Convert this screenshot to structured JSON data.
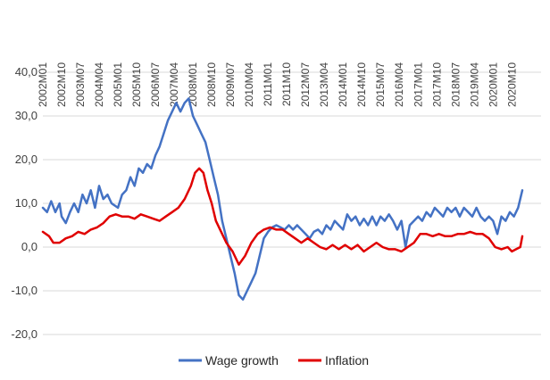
{
  "chart_data": {
    "type": "line",
    "title": "",
    "xlabel": "",
    "ylabel": "",
    "ylim": [
      -20,
      40
    ],
    "yticks": [
      -20,
      -10,
      0,
      10,
      20,
      30,
      40
    ],
    "ytick_labels": [
      "-20,0",
      "-10,0",
      "0,0",
      "10,0",
      "20,0",
      "30,0",
      "40,0"
    ],
    "x_start": "2002M01",
    "x_end": "2021M12",
    "xtick_labels": [
      "2002M01",
      "2002M10",
      "2003M07",
      "2004M04",
      "2005M01",
      "2005M10",
      "2006M07",
      "2007M04",
      "2008M01",
      "2008M10",
      "2009M07",
      "2010M04",
      "2011M01",
      "2011M10",
      "2012M07",
      "2013M04",
      "2014M01",
      "2014M10",
      "2015M07",
      "2016M04",
      "2017M01",
      "2017M10",
      "2018M07",
      "2019M04",
      "2020M01",
      "2020M10"
    ],
    "grid": true,
    "legend_position": "bottom",
    "series": [
      {
        "name": "Wage growth",
        "color": "#4472C4",
        "points": [
          [
            "2002M01",
            9
          ],
          [
            "2002M03",
            8
          ],
          [
            "2002M05",
            10.5
          ],
          [
            "2002M07",
            8
          ],
          [
            "2002M09",
            10
          ],
          [
            "2002M10",
            7
          ],
          [
            "2002M12",
            5.5
          ],
          [
            "2003M02",
            8
          ],
          [
            "2003M04",
            10
          ],
          [
            "2003M06",
            8
          ],
          [
            "2003M08",
            12
          ],
          [
            "2003M10",
            10
          ],
          [
            "2003M12",
            13
          ],
          [
            "2004M02",
            9
          ],
          [
            "2004M04",
            14
          ],
          [
            "2004M06",
            11
          ],
          [
            "2004M08",
            12
          ],
          [
            "2004M10",
            10
          ],
          [
            "2005M01",
            9
          ],
          [
            "2005M03",
            12
          ],
          [
            "2005M05",
            13
          ],
          [
            "2005M07",
            16
          ],
          [
            "2005M09",
            14
          ],
          [
            "2005M11",
            18
          ],
          [
            "2006M01",
            17
          ],
          [
            "2006M03",
            19
          ],
          [
            "2006M05",
            18
          ],
          [
            "2006M07",
            21
          ],
          [
            "2006M09",
            23
          ],
          [
            "2006M11",
            26
          ],
          [
            "2007M01",
            29
          ],
          [
            "2007M03",
            31
          ],
          [
            "2007M05",
            33
          ],
          [
            "2007M07",
            31
          ],
          [
            "2007M09",
            33
          ],
          [
            "2007M11",
            34
          ],
          [
            "2008M01",
            30
          ],
          [
            "2008M03",
            28
          ],
          [
            "2008M05",
            26
          ],
          [
            "2008M07",
            24
          ],
          [
            "2008M09",
            20
          ],
          [
            "2008M11",
            16
          ],
          [
            "2009M01",
            12
          ],
          [
            "2009M03",
            6
          ],
          [
            "2009M05",
            2
          ],
          [
            "2009M07",
            -2
          ],
          [
            "2009M09",
            -6
          ],
          [
            "2009M11",
            -11
          ],
          [
            "2010M01",
            -12
          ],
          [
            "2010M03",
            -10
          ],
          [
            "2010M05",
            -8
          ],
          [
            "2010M07",
            -6
          ],
          [
            "2010M09",
            -2
          ],
          [
            "2010M11",
            2
          ],
          [
            "2011M01",
            3.5
          ],
          [
            "2011M03",
            4.5
          ],
          [
            "2011M05",
            5
          ],
          [
            "2011M07",
            4.5
          ],
          [
            "2011M09",
            4
          ],
          [
            "2011M11",
            5
          ],
          [
            "2012M01",
            4
          ],
          [
            "2012M03",
            5
          ],
          [
            "2012M05",
            4
          ],
          [
            "2012M07",
            3
          ],
          [
            "2012M09",
            2
          ],
          [
            "2012M11",
            3.5
          ],
          [
            "2013M01",
            4
          ],
          [
            "2013M03",
            3
          ],
          [
            "2013M05",
            5
          ],
          [
            "2013M07",
            4
          ],
          [
            "2013M09",
            6
          ],
          [
            "2013M11",
            5
          ],
          [
            "2014M01",
            4
          ],
          [
            "2014M03",
            7.5
          ],
          [
            "2014M05",
            6
          ],
          [
            "2014M07",
            7
          ],
          [
            "2014M09",
            5
          ],
          [
            "2014M11",
            6.5
          ],
          [
            "2015M01",
            5
          ],
          [
            "2015M03",
            7
          ],
          [
            "2015M05",
            5
          ],
          [
            "2015M07",
            7
          ],
          [
            "2015M09",
            6
          ],
          [
            "2015M11",
            7.5
          ],
          [
            "2016M01",
            6
          ],
          [
            "2016M03",
            4
          ],
          [
            "2016M05",
            6
          ],
          [
            "2016M07",
            0
          ],
          [
            "2016M09",
            5
          ],
          [
            "2016M11",
            6
          ],
          [
            "2017M01",
            7
          ],
          [
            "2017M03",
            6
          ],
          [
            "2017M05",
            8
          ],
          [
            "2017M07",
            7
          ],
          [
            "2017M09",
            9
          ],
          [
            "2017M11",
            8
          ],
          [
            "2018M01",
            7
          ],
          [
            "2018M03",
            9
          ],
          [
            "2018M05",
            8
          ],
          [
            "2018M07",
            9
          ],
          [
            "2018M09",
            7
          ],
          [
            "2018M11",
            9
          ],
          [
            "2019M01",
            8
          ],
          [
            "2019M03",
            7
          ],
          [
            "2019M05",
            9
          ],
          [
            "2019M07",
            7
          ],
          [
            "2019M09",
            6
          ],
          [
            "2019M11",
            7
          ],
          [
            "2020M01",
            6
          ],
          [
            "2020M03",
            3
          ],
          [
            "2020M05",
            7
          ],
          [
            "2020M07",
            6
          ],
          [
            "2020M09",
            8
          ],
          [
            "2020M11",
            7
          ],
          [
            "2021M01",
            9
          ],
          [
            "2021M03",
            13
          ]
        ]
      },
      {
        "name": "Inflation",
        "color": "#E00000",
        "points": [
          [
            "2002M01",
            3.5
          ],
          [
            "2002M04",
            2.5
          ],
          [
            "2002M06",
            1
          ],
          [
            "2002M09",
            1
          ],
          [
            "2002M12",
            2
          ],
          [
            "2003M03",
            2.5
          ],
          [
            "2003M06",
            3.5
          ],
          [
            "2003M09",
            3
          ],
          [
            "2003M12",
            4
          ],
          [
            "2004M03",
            4.5
          ],
          [
            "2004M06",
            5.5
          ],
          [
            "2004M09",
            7
          ],
          [
            "2004M12",
            7.5
          ],
          [
            "2005M03",
            7
          ],
          [
            "2005M06",
            7
          ],
          [
            "2005M09",
            6.5
          ],
          [
            "2005M12",
            7.5
          ],
          [
            "2006M03",
            7
          ],
          [
            "2006M06",
            6.5
          ],
          [
            "2006M09",
            6
          ],
          [
            "2006M12",
            7
          ],
          [
            "2007M03",
            8
          ],
          [
            "2007M06",
            9
          ],
          [
            "2007M09",
            11
          ],
          [
            "2007M12",
            14
          ],
          [
            "2008M02",
            17
          ],
          [
            "2008M04",
            18
          ],
          [
            "2008M06",
            17
          ],
          [
            "2008M08",
            13
          ],
          [
            "2008M10",
            10
          ],
          [
            "2008M12",
            6
          ],
          [
            "2009M02",
            4
          ],
          [
            "2009M05",
            1
          ],
          [
            "2009M08",
            -1
          ],
          [
            "2009M11",
            -4
          ],
          [
            "2010M02",
            -2
          ],
          [
            "2010M05",
            1
          ],
          [
            "2010M08",
            3
          ],
          [
            "2010M11",
            4
          ],
          [
            "2011M02",
            4.5
          ],
          [
            "2011M05",
            4
          ],
          [
            "2011M08",
            4
          ],
          [
            "2011M11",
            3
          ],
          [
            "2012M02",
            2
          ],
          [
            "2012M05",
            1
          ],
          [
            "2012M08",
            2
          ],
          [
            "2012M11",
            1
          ],
          [
            "2013M02",
            0
          ],
          [
            "2013M05",
            -0.5
          ],
          [
            "2013M08",
            0.5
          ],
          [
            "2013M11",
            -0.5
          ],
          [
            "2014M02",
            0.5
          ],
          [
            "2014M05",
            -0.5
          ],
          [
            "2014M08",
            0.5
          ],
          [
            "2014M11",
            -1
          ],
          [
            "2015M02",
            0
          ],
          [
            "2015M05",
            1
          ],
          [
            "2015M08",
            0
          ],
          [
            "2015M11",
            -0.5
          ],
          [
            "2016M02",
            -0.5
          ],
          [
            "2016M05",
            -1
          ],
          [
            "2016M08",
            0
          ],
          [
            "2016M11",
            1
          ],
          [
            "2017M02",
            3
          ],
          [
            "2017M05",
            3
          ],
          [
            "2017M08",
            2.5
          ],
          [
            "2017M11",
            3
          ],
          [
            "2018M02",
            2.5
          ],
          [
            "2018M05",
            2.5
          ],
          [
            "2018M08",
            3
          ],
          [
            "2018M11",
            3
          ],
          [
            "2019M02",
            3.5
          ],
          [
            "2019M05",
            3
          ],
          [
            "2019M08",
            3
          ],
          [
            "2019M11",
            2
          ],
          [
            "2020M02",
            0
          ],
          [
            "2020M05",
            -0.5
          ],
          [
            "2020M08",
            0
          ],
          [
            "2020M10",
            -1
          ],
          [
            "2020M12",
            -0.5
          ],
          [
            "2021M02",
            0
          ],
          [
            "2021M03",
            2.5
          ]
        ]
      }
    ]
  }
}
